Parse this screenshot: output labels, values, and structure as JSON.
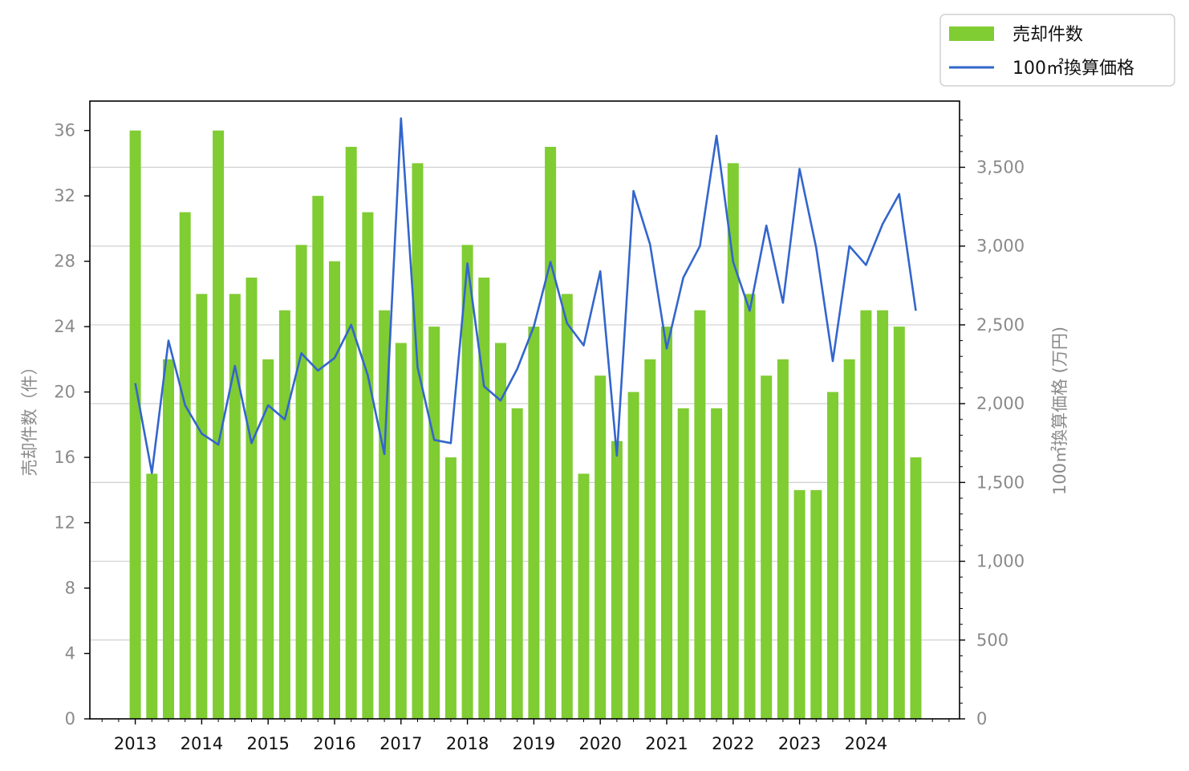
{
  "chart_data": {
    "type": "bar",
    "title": "",
    "xlabel": "",
    "ylabel": "売却件数（件）",
    "y2label": "100㎡換算価格 (万円)",
    "x_tick_labels": [
      "2013",
      "2014",
      "2015",
      "2016",
      "2017",
      "2018",
      "2019",
      "2020",
      "2021",
      "2022",
      "2023",
      "2024"
    ],
    "quarters_per_year": 4,
    "ylim": [
      0,
      37.8
    ],
    "y_ticks": [
      0,
      4,
      8,
      12,
      16,
      20,
      24,
      28,
      32,
      36
    ],
    "y2lim": [
      0,
      3920
    ],
    "y2_ticks": [
      0,
      500,
      1000,
      1500,
      2000,
      2500,
      3000,
      3500
    ],
    "y2_tick_labels": [
      "0",
      "500",
      "1,000",
      "1,500",
      "2,000",
      "2,500",
      "3,000",
      "3,500"
    ],
    "grid": "horizontal, right axis",
    "legend_position": "top-right",
    "series": [
      {
        "name": "売却件数",
        "type": "bar",
        "axis": "left",
        "color": "#80cc33",
        "values": [
          36,
          15,
          22,
          31,
          26,
          36,
          26,
          27,
          22,
          25,
          29,
          32,
          28,
          35,
          31,
          25,
          23,
          34,
          24,
          16,
          29,
          27,
          23,
          19,
          24,
          35,
          26,
          15,
          21,
          17,
          20,
          22,
          24,
          19,
          25,
          19,
          34,
          26,
          21,
          22,
          14,
          14,
          20,
          22,
          25,
          25,
          24,
          16
        ]
      },
      {
        "name": "100㎡換算価格",
        "type": "line",
        "axis": "right",
        "color": "#3366cc",
        "values": [
          2130,
          1560,
          2400,
          1990,
          1810,
          1740,
          2240,
          1750,
          1990,
          1900,
          2320,
          2210,
          2290,
          2500,
          2180,
          1680,
          3810,
          2230,
          1770,
          1750,
          2890,
          2110,
          2020,
          2220,
          2490,
          2900,
          2510,
          2370,
          2840,
          1670,
          3350,
          3010,
          2350,
          2800,
          3000,
          3700,
          2900,
          2590,
          3130,
          2640,
          3490,
          2990,
          2270,
          3000,
          2880,
          3140,
          3330,
          2590
        ]
      }
    ]
  },
  "colors": {
    "axis_text": "#8a8a8a",
    "x_tick_text": "#111111",
    "grid": "#d0d0d0",
    "frame": "#000000"
  }
}
